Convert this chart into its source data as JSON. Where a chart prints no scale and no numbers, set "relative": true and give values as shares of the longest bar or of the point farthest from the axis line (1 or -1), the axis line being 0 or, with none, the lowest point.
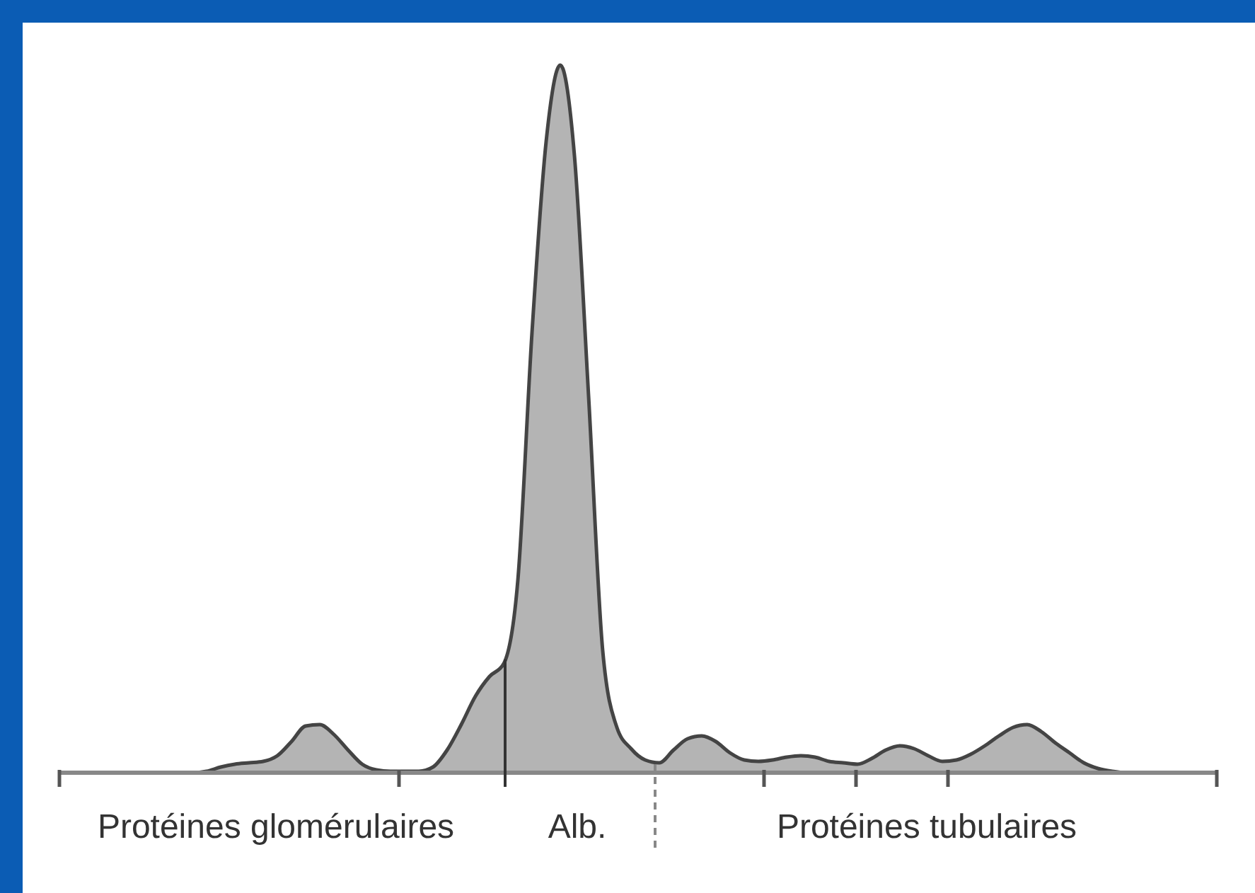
{
  "chart_data": {
    "type": "area",
    "relative": true,
    "categories": [
      null,
      null,
      null,
      null,
      null,
      null,
      null,
      null,
      null,
      null,
      null,
      null,
      null,
      null,
      null,
      null,
      null,
      null,
      null,
      null,
      null,
      null,
      null,
      null,
      null,
      null,
      null,
      null,
      null,
      null,
      null,
      null,
      null,
      null,
      null,
      null,
      null,
      null,
      null,
      null,
      null,
      null,
      null,
      null,
      null,
      null,
      null,
      null,
      null,
      null,
      null,
      null,
      null,
      null,
      null,
      null,
      null,
      null,
      null,
      null,
      null,
      null,
      null,
      null,
      null,
      null,
      null,
      null,
      null,
      null,
      null,
      null,
      null,
      null,
      null,
      null,
      null,
      null,
      null,
      null,
      null,
      null
    ],
    "series": [
      {
        "color": "#b4b4b4",
        "values": [
          0,
          0,
          0,
          0,
          0,
          0,
          0,
          0,
          0,
          0,
          0.002,
          0.008,
          0.012,
          0.014,
          0.016,
          0.024,
          0.044,
          0.066,
          0.068,
          0.054,
          0.032,
          0.012,
          0.004,
          0.002,
          0.002,
          0.002,
          0.008,
          0.032,
          0.068,
          0.108,
          0.136,
          0.154,
          0.272,
          0.622,
          0.892,
          1.0,
          0.872,
          0.532,
          0.172,
          0.064,
          0.034,
          0.018,
          0.014,
          0.032,
          0.048,
          0.052,
          0.044,
          0.028,
          0.018,
          0.016,
          0.018,
          0.022,
          0.024,
          0.022,
          0.016,
          0.014,
          0.012,
          0.02,
          0.032,
          0.038,
          0.034,
          0.024,
          0.016,
          0.018,
          0.026,
          0.038,
          0.052,
          0.064,
          0.068,
          0.058,
          0.042,
          0.028,
          0.014,
          0.006,
          0.002,
          0,
          0,
          0,
          0,
          0,
          0,
          0
        ]
      }
    ],
    "annotations": [
      "Protéines glomérulaires",
      "Alb.",
      "Protéines tubulaires"
    ],
    "grid": false
  }
}
